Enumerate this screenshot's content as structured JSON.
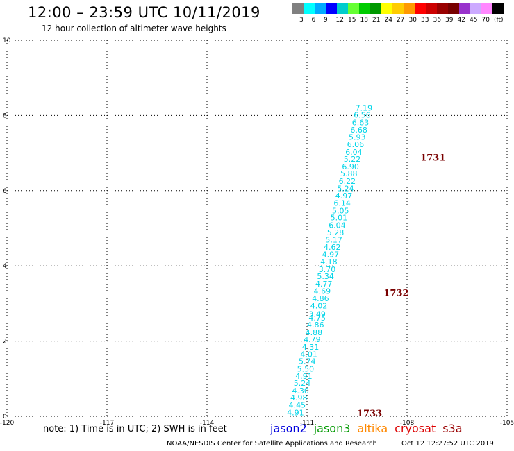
{
  "header": {
    "title": "12:00 – 23:59 UTC 10/11/2019",
    "subtitle": "12 hour collection of altimeter wave heights"
  },
  "color_scale": {
    "colors": [
      "#808080",
      "#00ffff",
      "#00aaff",
      "#0000ff",
      "#00cccc",
      "#66ff33",
      "#00cc00",
      "#009900",
      "#ffff00",
      "#ffcc00",
      "#ff9900",
      "#ff0000",
      "#cc0000",
      "#990000",
      "#770000",
      "#9933cc",
      "#ccaaff",
      "#ff88ff",
      "#000000"
    ],
    "labels": [
      "3",
      "6",
      "9",
      "12",
      "15",
      "18",
      "21",
      "24",
      "27",
      "30",
      "33",
      "36",
      "39",
      "42",
      "45",
      "70",
      "(ft)"
    ]
  },
  "axes": {
    "x_ticks": [
      "-120",
      "-117",
      "-114",
      "-111",
      "-108",
      "-105"
    ],
    "x_range": [
      -120,
      -105
    ],
    "y_ticks": [
      "0",
      "2",
      "4",
      "6",
      "8",
      "10"
    ],
    "y_range": [
      0,
      10
    ]
  },
  "track_points": [
    {
      "lon": -111.6,
      "lat": 0.03,
      "label": "4.91"
    },
    {
      "lon": -111.55,
      "lat": 0.23,
      "label": "4.45"
    },
    {
      "lon": -111.5,
      "lat": 0.42,
      "label": "4.98"
    },
    {
      "lon": -111.45,
      "lat": 0.61,
      "label": "4.30"
    },
    {
      "lon": -111.4,
      "lat": 0.81,
      "label": "5.24"
    },
    {
      "lon": -111.35,
      "lat": 1.0,
      "label": "4.91"
    },
    {
      "lon": -111.3,
      "lat": 1.19,
      "label": "5.50"
    },
    {
      "lon": -111.25,
      "lat": 1.39,
      "label": "5.74"
    },
    {
      "lon": -111.2,
      "lat": 1.58,
      "label": "4.01"
    },
    {
      "lon": -111.15,
      "lat": 1.77,
      "label": "4.31"
    },
    {
      "lon": -111.1,
      "lat": 1.97,
      "label": "4.79"
    },
    {
      "lon": -111.05,
      "lat": 2.16,
      "label": "4.88"
    },
    {
      "lon": -111.0,
      "lat": 2.36,
      "label": "4.86"
    },
    {
      "lon": -110.95,
      "lat": 2.55,
      "label": "4.75"
    },
    {
      "lon": -110.95,
      "lat": 2.65,
      "label": "3.49"
    },
    {
      "lon": -110.9,
      "lat": 2.87,
      "label": "4.02"
    },
    {
      "lon": -110.85,
      "lat": 3.06,
      "label": "4.86"
    },
    {
      "lon": -110.8,
      "lat": 3.26,
      "label": "4.69"
    },
    {
      "lon": -110.75,
      "lat": 3.45,
      "label": "4.77"
    },
    {
      "lon": -110.7,
      "lat": 3.65,
      "label": "5.34"
    },
    {
      "lon": -110.65,
      "lat": 3.84,
      "label": "3.70"
    },
    {
      "lon": -110.6,
      "lat": 4.04,
      "label": "4.18"
    },
    {
      "lon": -110.55,
      "lat": 4.23,
      "label": "4.97"
    },
    {
      "lon": -110.5,
      "lat": 4.43,
      "label": "4.62"
    },
    {
      "lon": -110.45,
      "lat": 4.62,
      "label": "5.17"
    },
    {
      "lon": -110.4,
      "lat": 4.82,
      "label": "5.28"
    },
    {
      "lon": -110.35,
      "lat": 5.01,
      "label": "6.04"
    },
    {
      "lon": -110.3,
      "lat": 5.21,
      "label": "5.01"
    },
    {
      "lon": -110.25,
      "lat": 5.4,
      "label": "5.05"
    },
    {
      "lon": -110.2,
      "lat": 5.6,
      "label": "6.14"
    },
    {
      "lon": -110.15,
      "lat": 5.79,
      "label": "4.97"
    },
    {
      "lon": -110.1,
      "lat": 5.99,
      "label": "5.24"
    },
    {
      "lon": -110.05,
      "lat": 6.18,
      "label": "6.22"
    },
    {
      "lon": -110.0,
      "lat": 6.38,
      "label": "5.88"
    },
    {
      "lon": -109.95,
      "lat": 6.57,
      "label": "6.90"
    },
    {
      "lon": -109.9,
      "lat": 6.77,
      "label": "5.22"
    },
    {
      "lon": -109.85,
      "lat": 6.96,
      "label": "6.04"
    },
    {
      "lon": -109.8,
      "lat": 7.16,
      "label": "6.06"
    },
    {
      "lon": -109.75,
      "lat": 7.35,
      "label": "5.93"
    },
    {
      "lon": -109.7,
      "lat": 7.55,
      "label": "6.68"
    },
    {
      "lon": -109.65,
      "lat": 7.74,
      "label": "6.63"
    },
    {
      "lon": -109.6,
      "lat": 7.94,
      "label": "6.56"
    },
    {
      "lon": -109.55,
      "lat": 8.13,
      "label": "7.19"
    }
  ],
  "pass_labels": [
    {
      "lon": -109.5,
      "lat": 0.0,
      "label": "1733"
    },
    {
      "lon": -108.7,
      "lat": 3.2,
      "label": "1732"
    },
    {
      "lon": -107.6,
      "lat": 6.8,
      "label": "1731"
    }
  ],
  "note": "note: 1) Time is in UTC; 2) SWH is in feet",
  "legend": [
    {
      "name": "jason2",
      "color": "#0000dd"
    },
    {
      "name": "jason3",
      "color": "#009900"
    },
    {
      "name": "altika",
      "color": "#ff8800"
    },
    {
      "name": "cryosat",
      "color": "#dd0000"
    },
    {
      "name": "s3a",
      "color": "#990000"
    }
  ],
  "footer": "NOAA/NESDIS Center for Satellite Applications and Research",
  "timestamp": "Oct 12 12:27:52 UTC 2019"
}
